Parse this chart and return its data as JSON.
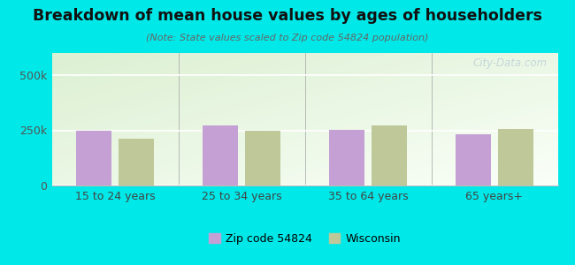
{
  "title": "Breakdown of mean house values by ages of householders",
  "subtitle": "(Note: State values scaled to Zip code 54824 population)",
  "categories": [
    "15 to 24 years",
    "25 to 34 years",
    "35 to 64 years",
    "65 years+"
  ],
  "zip_values": [
    250000,
    272000,
    252000,
    232000
  ],
  "wi_values": [
    213000,
    250000,
    272000,
    257000
  ],
  "zip_color": "#c4a0d4",
  "wi_color": "#bec898",
  "background_outer": "#00e8e8",
  "ylim": [
    0,
    600000
  ],
  "ytick_labels": [
    "0",
    "250k",
    "500k"
  ],
  "ytick_values": [
    0,
    250000,
    500000
  ],
  "legend_zip_label": "Zip code 54824",
  "legend_wi_label": "Wisconsin",
  "watermark": "City-Data.com"
}
